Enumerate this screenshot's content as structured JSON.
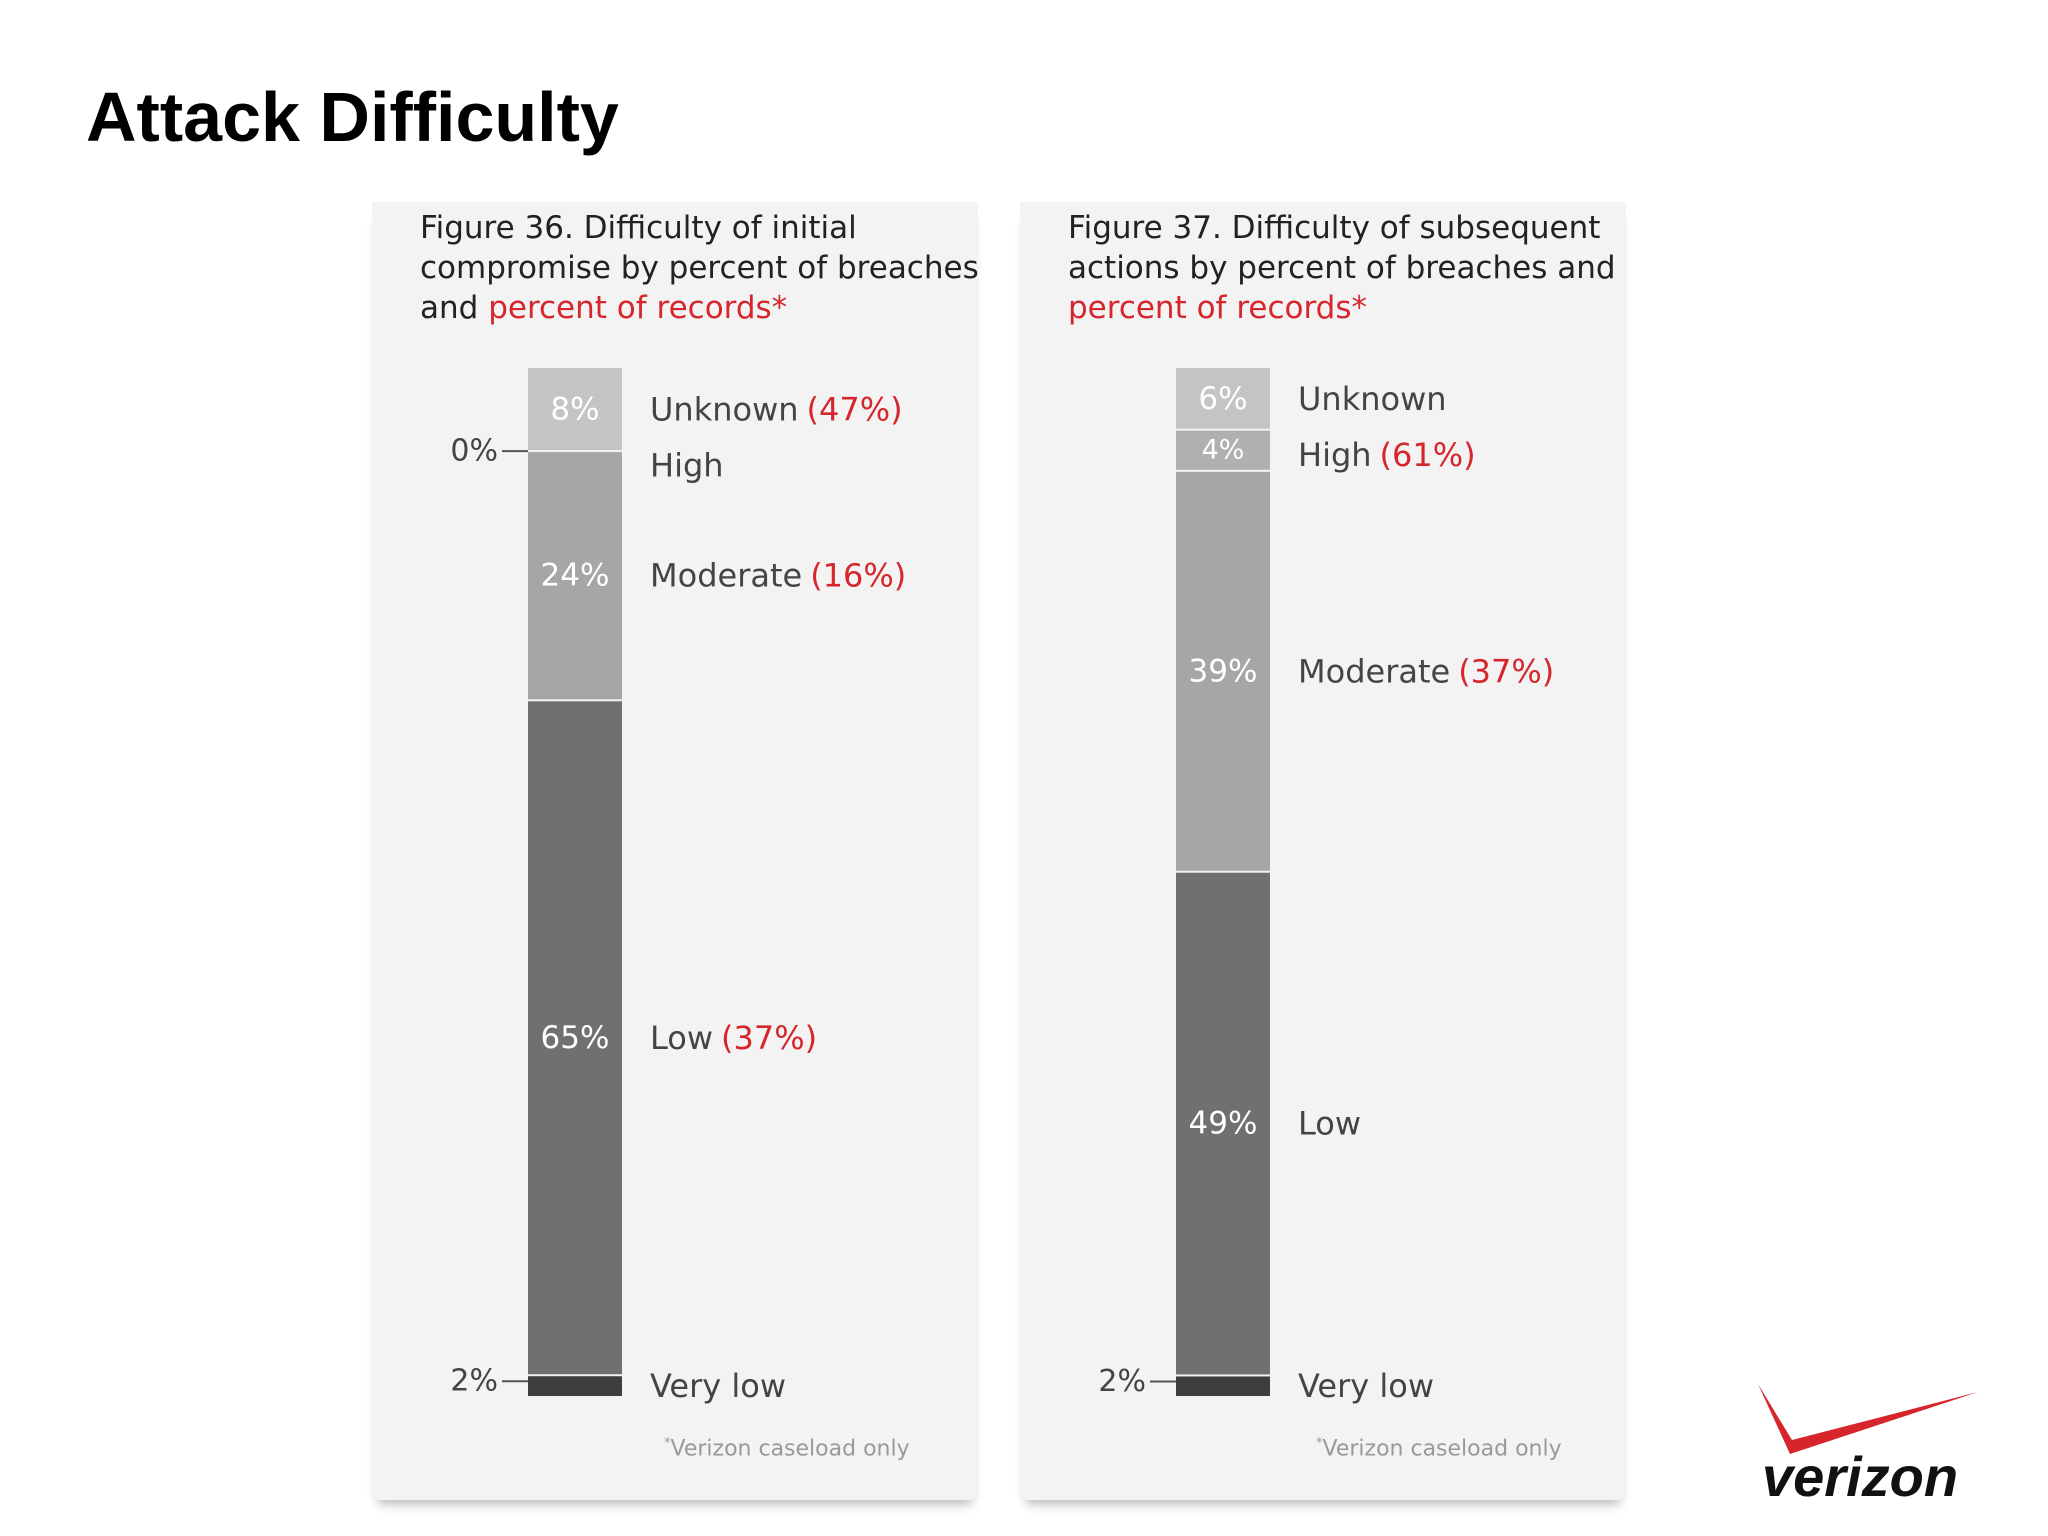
{
  "slide": {
    "title": "Attack Difficulty"
  },
  "colors": {
    "unknown": "#c4c4c4",
    "high": "#b0b0b0",
    "moderate": "#a6a6a6",
    "low": "#6f7070",
    "very_low": "#3e3e3e",
    "records": "#d6262c",
    "label": "#444444",
    "panel": "#f3f3f3",
    "logo_red": "#d6262c"
  },
  "logo": {
    "text": "verizon"
  },
  "chart_data": [
    {
      "type": "stacked_bar",
      "title_parts": [
        "Figure 36. Difficulty of initial compromise by percent of breaches and ",
        "percent of records*"
      ],
      "footnote_mark": "*",
      "footnote": "Verizon caseload only",
      "segments": [
        {
          "name": "Unknown",
          "breaches": 8,
          "breaches_label": "8%",
          "records_label": "(47%)",
          "color": "#c4c4c4"
        },
        {
          "name": "High",
          "breaches": 0,
          "breaches_label": "0%",
          "records_label": "",
          "color": "#b0b0b0"
        },
        {
          "name": "Moderate",
          "breaches": 24,
          "breaches_label": "24%",
          "records_label": "(16%)",
          "color": "#a6a6a6"
        },
        {
          "name": "Low",
          "breaches": 65,
          "breaches_label": "65%",
          "records_label": "(37%)",
          "color": "#6f7070"
        },
        {
          "name": "Very low",
          "breaches": 2,
          "breaches_label": "2%",
          "records_label": "",
          "color": "#3e3e3e"
        }
      ]
    },
    {
      "type": "stacked_bar",
      "title_parts": [
        "Figure 37. Difficulty of subsequent actions by percent of breaches and ",
        "percent of records*"
      ],
      "footnote_mark": "*",
      "footnote": "Verizon caseload only",
      "segments": [
        {
          "name": "Unknown",
          "breaches": 6,
          "breaches_label": "6%",
          "records_label": "",
          "color": "#c4c4c4"
        },
        {
          "name": "High",
          "breaches": 4,
          "breaches_label": "4%",
          "records_label": "(61%)",
          "color": "#b0b0b0"
        },
        {
          "name": "Moderate",
          "breaches": 39,
          "breaches_label": "39%",
          "records_label": "(37%)",
          "color": "#a6a6a6"
        },
        {
          "name": "Low",
          "breaches": 49,
          "breaches_label": "49%",
          "records_label": "",
          "color": "#6f7070"
        },
        {
          "name": "Very low",
          "breaches": 2,
          "breaches_label": "2%",
          "records_label": "",
          "color": "#3e3e3e"
        }
      ]
    }
  ]
}
